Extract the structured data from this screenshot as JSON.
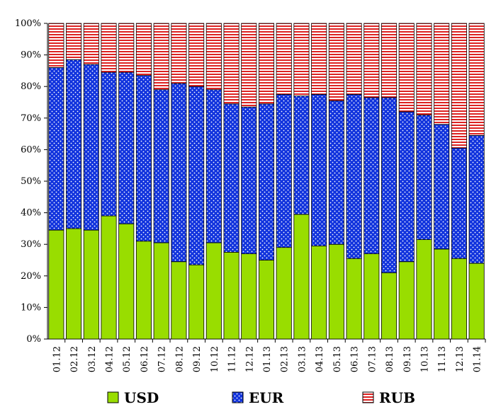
{
  "chart_data": {
    "type": "bar",
    "stacked": true,
    "percent": true,
    "title": "",
    "xlabel": "",
    "ylabel": "",
    "ylim": [
      0,
      100
    ],
    "yticks": [
      "0%",
      "10%",
      "20%",
      "30%",
      "40%",
      "50%",
      "60%",
      "70%",
      "80%",
      "90%",
      "100%"
    ],
    "categories": [
      "01.12",
      "02.12",
      "03.12",
      "04.12",
      "05.12",
      "06.12",
      "07.12",
      "08.12",
      "09.12",
      "10.12",
      "11.12",
      "12.12",
      "01.13",
      "02.13",
      "03.13",
      "04.13",
      "05.13",
      "06.13",
      "07.13",
      "08.13",
      "09.13",
      "10.13",
      "11.13",
      "12.13",
      "01.14"
    ],
    "series": [
      {
        "name": "USD",
        "color": "#99dd00",
        "pattern": "solid",
        "values": [
          34.5,
          35,
          34.5,
          39,
          36.5,
          31,
          30.5,
          24.5,
          23.5,
          30.5,
          27.5,
          27,
          25,
          29,
          39.5,
          29.5,
          30,
          25.5,
          27,
          21,
          24.5,
          31.5,
          28.5,
          25.5,
          24
        ]
      },
      {
        "name": "EUR",
        "color": "#1133dd",
        "pattern": "dots",
        "values": [
          51.5,
          53.5,
          52.5,
          45.5,
          48,
          52.5,
          48.5,
          56.5,
          56.5,
          48.5,
          47,
          46.5,
          49.5,
          48.5,
          37.5,
          48,
          45.5,
          52,
          49.5,
          55.5,
          47.5,
          39.5,
          39.5,
          35,
          40.5
        ]
      },
      {
        "name": "RUB",
        "color": "#dd2222",
        "pattern": "stripes",
        "values": [
          14,
          11.5,
          13,
          15.5,
          15.5,
          16.5,
          21,
          19,
          20,
          21,
          25.5,
          26.5,
          25.5,
          22.5,
          23,
          22.5,
          24.5,
          22.5,
          23.5,
          23.5,
          28,
          29,
          32,
          39.5,
          35.5
        ]
      }
    ],
    "legend_position": "bottom",
    "grid": false
  }
}
